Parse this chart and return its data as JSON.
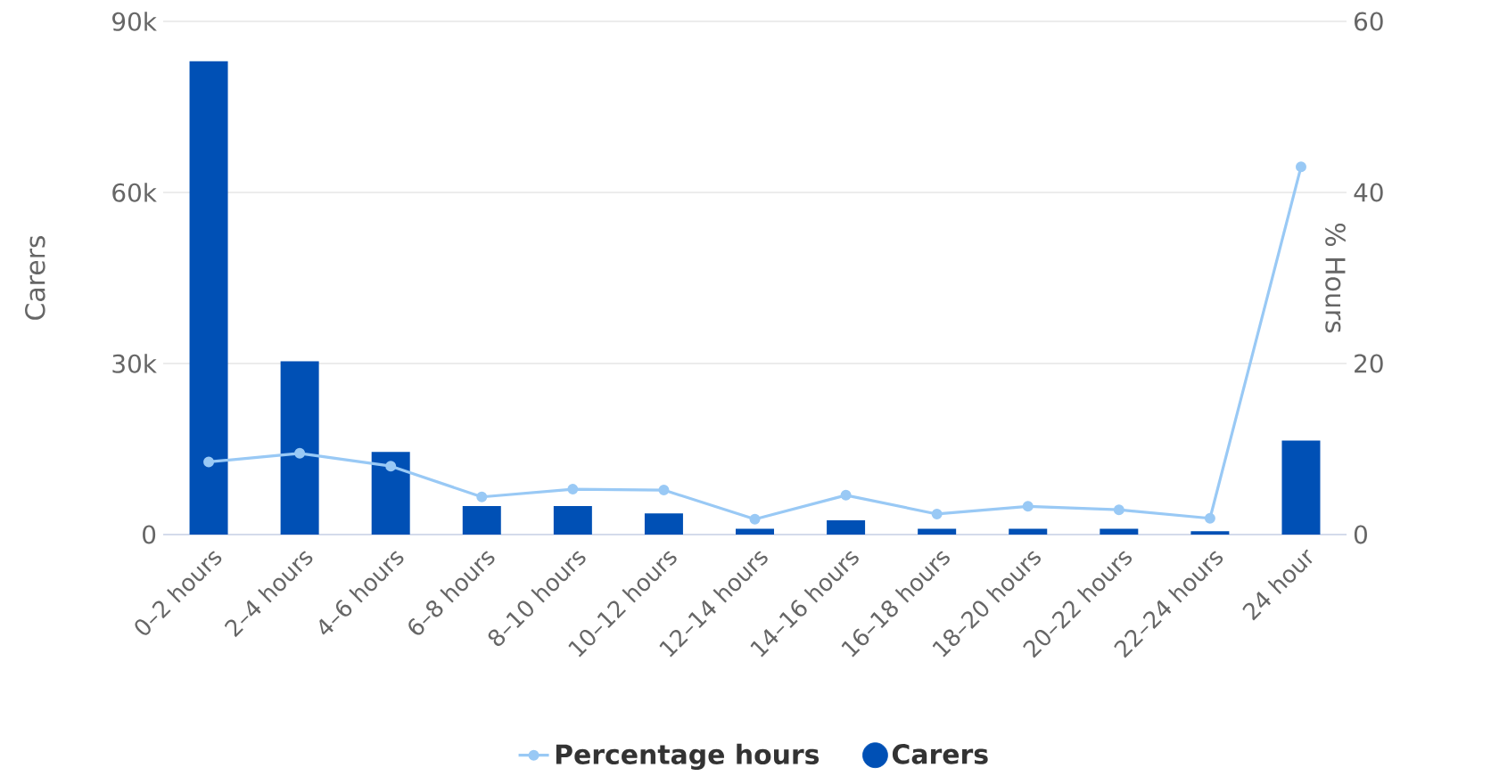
{
  "chart_data": {
    "type": "bar",
    "categories": [
      "0–2 hours",
      "2–4 hours",
      "4–6 hours",
      "6–8 hours",
      "8–10 hours",
      "10–12 hours",
      "12–14 hours",
      "14–16 hours",
      "16–18 hours",
      "18–20 hours",
      "20–22 hours",
      "22–24 hours",
      "24 hour"
    ],
    "series": [
      {
        "name": "Percentage hours",
        "type": "line",
        "axis": "y2",
        "color": "#99c9f5",
        "marker": "circle",
        "values": [
          8.5,
          9.5,
          8.0,
          4.4,
          5.3,
          5.2,
          1.8,
          4.6,
          2.4,
          3.3,
          2.9,
          1.9,
          43
        ]
      },
      {
        "name": "Carers",
        "color": "#0050b5",
        "values": [
          83000,
          30400,
          14500,
          5000,
          5000,
          3700,
          1000,
          2500,
          1000,
          1000,
          1000,
          600,
          16500
        ]
      }
    ],
    "ylabel": "Carers",
    "y2label": "% Hours",
    "ylim": [
      0,
      90000
    ],
    "yticks": [
      0,
      {
        "value": 30000,
        "label": "30k"
      },
      {
        "value": 60000,
        "label": "60k"
      },
      {
        "value": 90000,
        "label": "90k"
      }
    ],
    "y2lim": [
      0,
      60
    ],
    "y2ticks": [
      0,
      20,
      40,
      60
    ],
    "grid": "y",
    "legend": "bottom"
  }
}
